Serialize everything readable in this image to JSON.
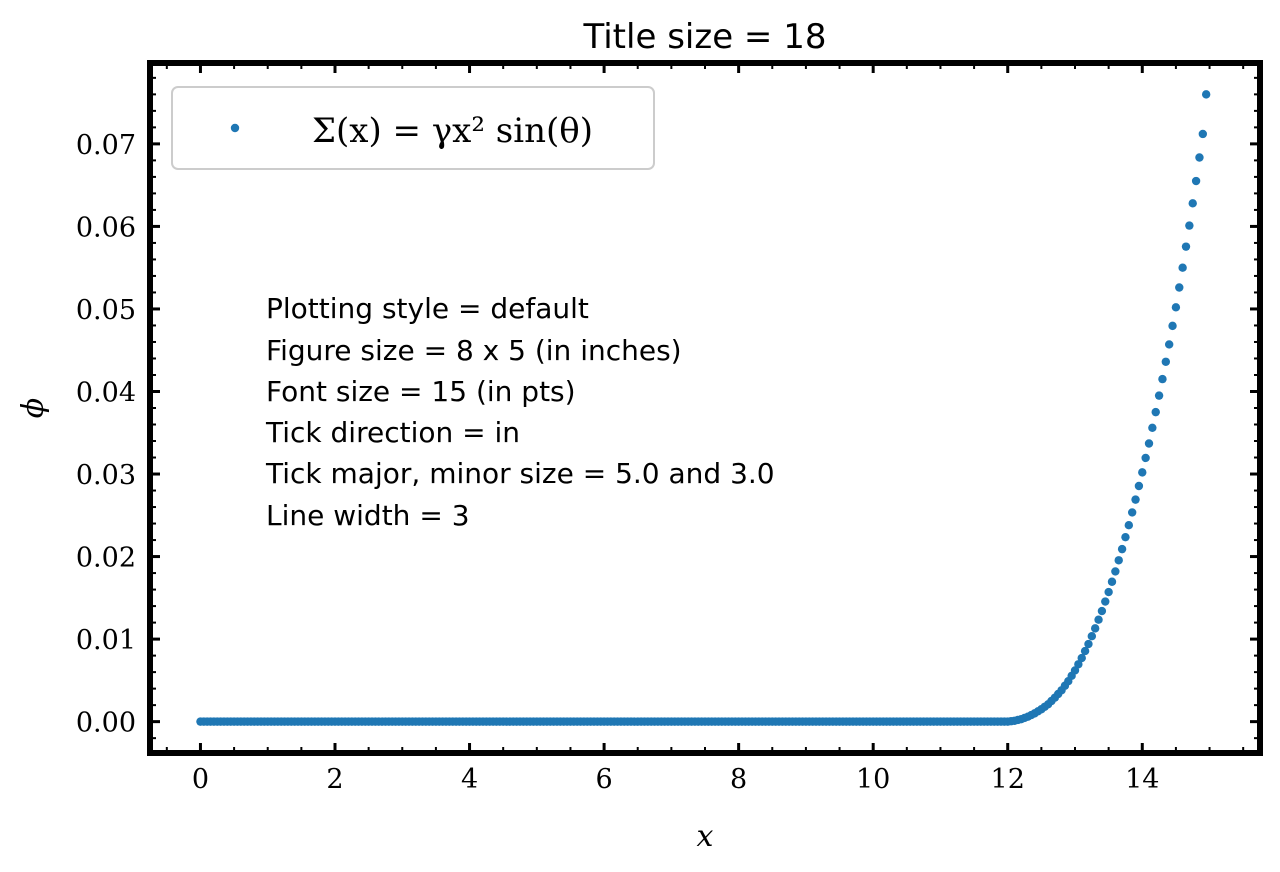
{
  "chart_data": {
    "type": "scatter",
    "title": "Title size = 18",
    "xlabel": "x",
    "ylabel": "ϕ",
    "xlim": [
      -0.75,
      15.75
    ],
    "ylim": [
      -0.0038,
      0.0798
    ],
    "xticks": [
      0,
      2,
      4,
      6,
      8,
      10,
      12,
      14
    ],
    "xtick_labels": [
      "0",
      "2",
      "4",
      "6",
      "8",
      "10",
      "12",
      "14"
    ],
    "yticks": [
      0.0,
      0.01,
      0.02,
      0.03,
      0.04,
      0.05,
      0.06,
      0.07
    ],
    "ytick_labels": [
      "0.00",
      "0.01",
      "0.02",
      "0.03",
      "0.04",
      "0.05",
      "0.06",
      "0.07"
    ],
    "grid": false,
    "legend_position": "top-left",
    "color": "#1f77b4",
    "series": [
      {
        "name": "Σ(x) = γx² sin(θ)",
        "x": [
          0.0,
          12.0,
          12.1,
          12.2,
          12.3,
          12.4,
          12.5,
          12.6,
          12.7,
          12.8,
          12.9,
          13.0,
          13.1,
          13.2,
          13.3,
          13.4,
          13.5,
          13.6,
          13.7,
          13.8,
          13.9,
          14.0,
          14.1,
          14.2,
          14.3,
          14.4,
          14.5,
          14.6,
          14.7,
          14.8,
          14.9,
          14.95
        ],
        "y": [
          0.0,
          0.0,
          0.0001,
          0.0003,
          0.0006,
          0.001,
          0.0015,
          0.0021,
          0.0029,
          0.0038,
          0.0049,
          0.0062,
          0.0077,
          0.0094,
          0.0113,
          0.0134,
          0.0157,
          0.0182,
          0.0209,
          0.0238,
          0.0269,
          0.0302,
          0.0337,
          0.0375,
          0.0415,
          0.0457,
          0.0502,
          0.055,
          0.0601,
          0.0655,
          0.0712,
          0.076
        ]
      }
    ],
    "annotation_lines": [
      "Plotting style = default",
      "Figure size = 8 x 5 (in inches)",
      "Font size = 15 (in pts)",
      "Tick direction = in",
      "Tick major, minor size = 5.0 and 3.0",
      "Line width = 3"
    ]
  }
}
